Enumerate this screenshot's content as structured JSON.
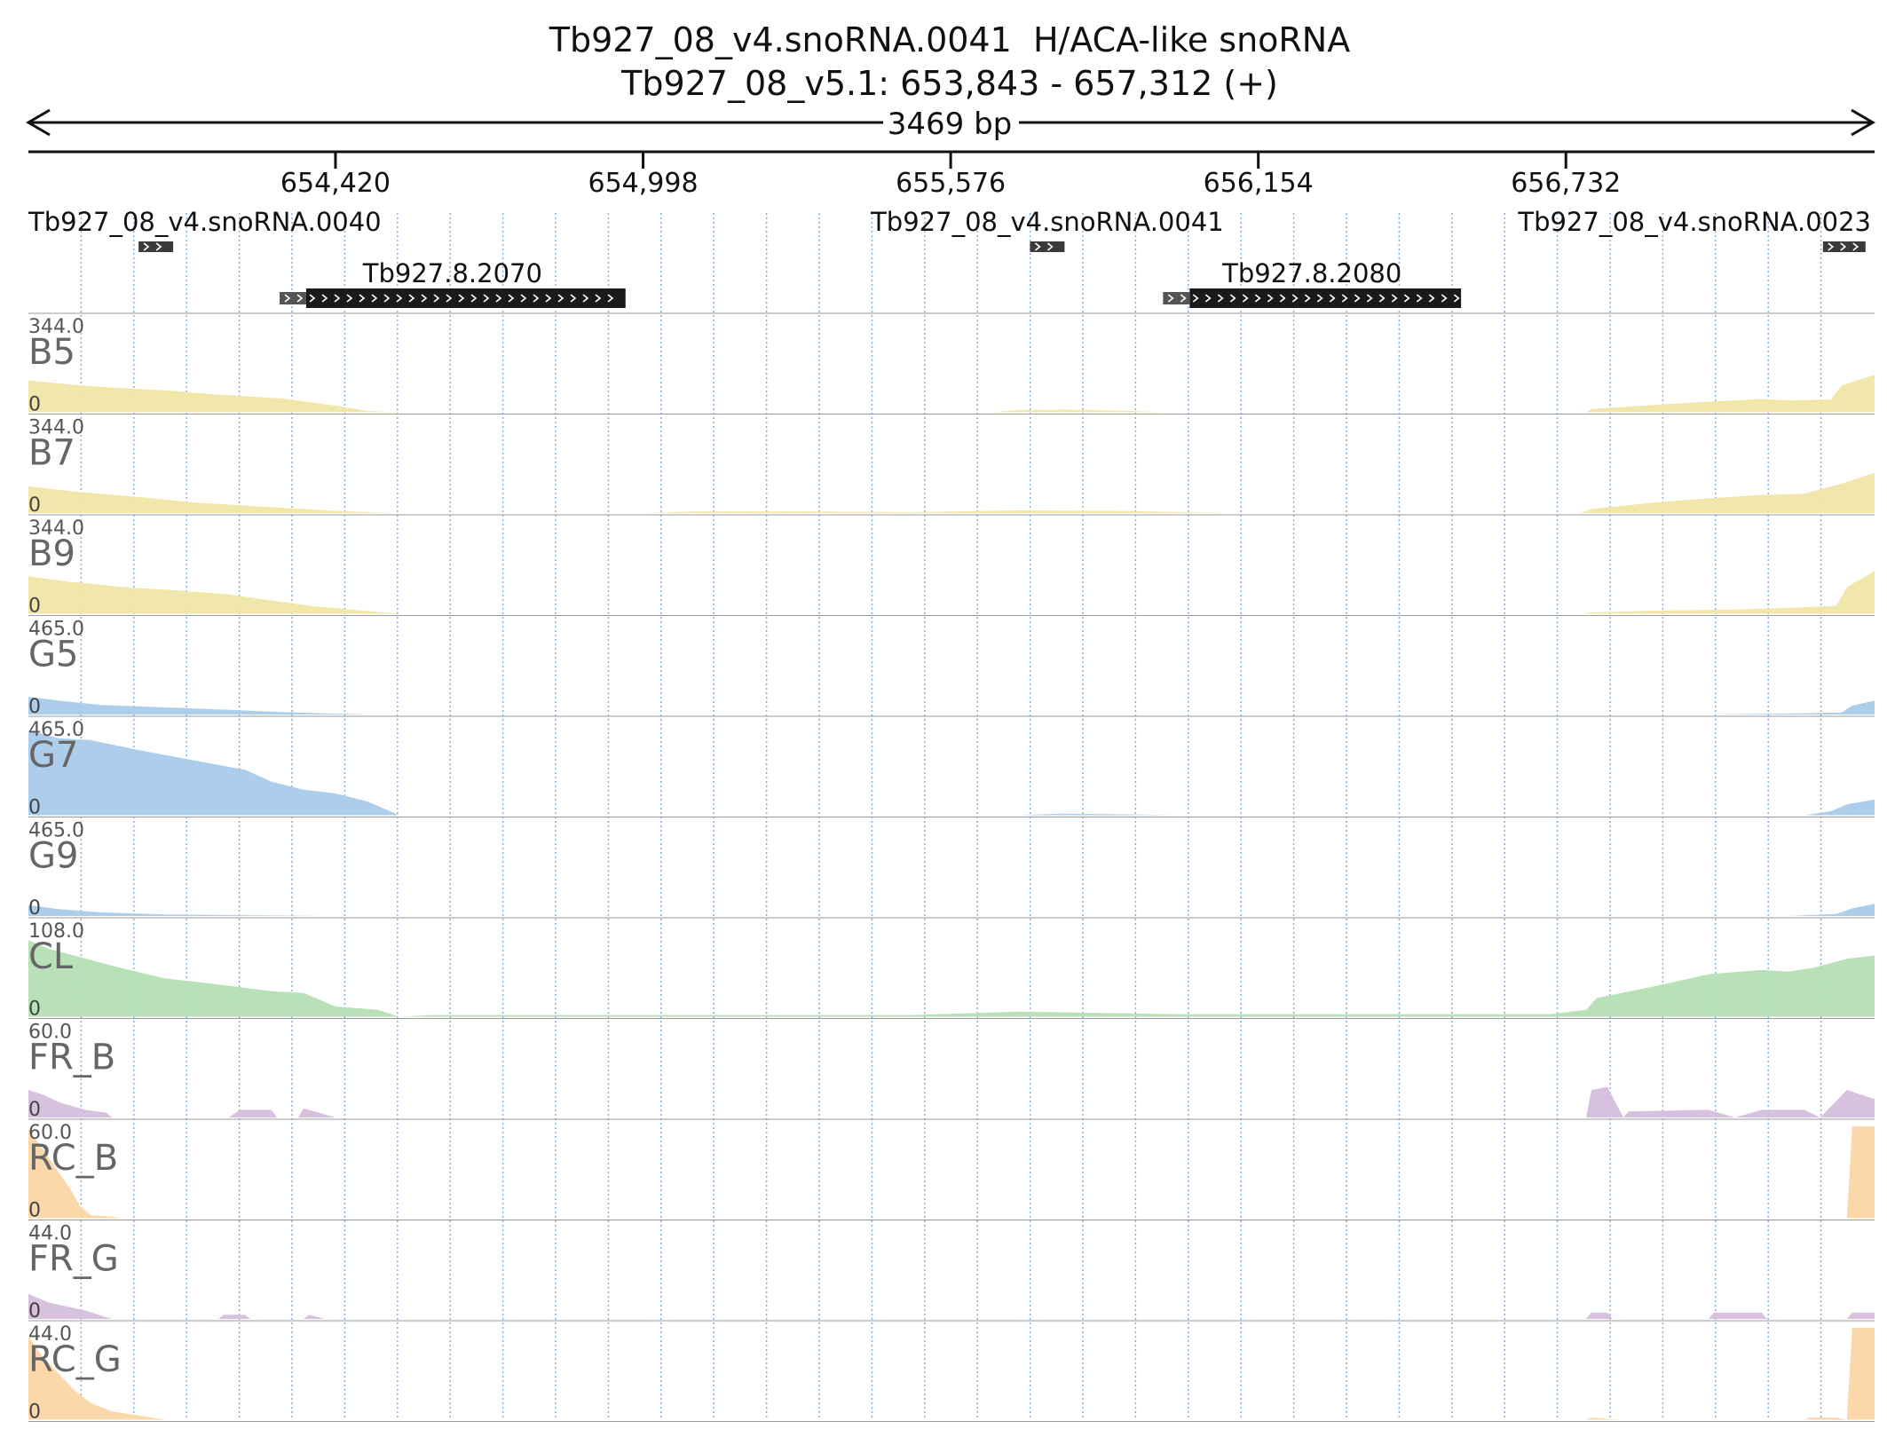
{
  "header": {
    "title": "Tb927_08_v4.snoRNA.0041  H/ACA-like snoRNA",
    "locus": "Tb927_08_v5.1: 653,843 - 657,312 (+)",
    "span_label": "3469 bp"
  },
  "region": {
    "start": 653843,
    "end": 657312,
    "strand": "+"
  },
  "ruler": {
    "ticks": [
      {
        "pos": 654420,
        "label": "654,420"
      },
      {
        "pos": 654998,
        "label": "654,998"
      },
      {
        "pos": 655576,
        "label": "655,576"
      },
      {
        "pos": 656154,
        "label": "656,154"
      },
      {
        "pos": 656732,
        "label": "656,732"
      }
    ]
  },
  "features": [
    {
      "name": "Tb927_08_v4.snoRNA.0040",
      "type": "snoRNA",
      "start": 654050,
      "end": 654115,
      "label_anchor": "start",
      "row": 0
    },
    {
      "name": "Tb927_08_v4.snoRNA.0041",
      "type": "snoRNA",
      "start": 655725,
      "end": 655790,
      "label_anchor": "middle",
      "row": 0
    },
    {
      "name": "Tb927_08_v4.snoRNA.0023",
      "type": "snoRNA",
      "start": 657215,
      "end": 657295,
      "label_anchor": "end",
      "row": 0
    },
    {
      "name": "Tb927.8.2070",
      "type": "gene",
      "start": 654315,
      "end": 654965,
      "utr_end": 654365,
      "label_anchor": "middle",
      "row": 1
    },
    {
      "name": "Tb927.8.2080",
      "type": "gene",
      "start": 655975,
      "end": 656535,
      "utr_end": 656025,
      "label_anchor": "middle",
      "row": 1
    }
  ],
  "tracks": [
    {
      "name": "B5",
      "max_label": "344.0",
      "min_label": "0",
      "max": 344,
      "color": "#f0e6a6",
      "profile": [
        [
          653843,
          120
        ],
        [
          653930,
          102
        ],
        [
          654020,
          90
        ],
        [
          654100,
          82
        ],
        [
          654200,
          66
        ],
        [
          654320,
          52
        ],
        [
          654420,
          25
        ],
        [
          654480,
          5
        ],
        [
          654540,
          0
        ],
        [
          655650,
          0
        ],
        [
          655700,
          8
        ],
        [
          655790,
          10
        ],
        [
          655900,
          6
        ],
        [
          655980,
          0
        ],
        [
          656770,
          0
        ],
        [
          656780,
          12
        ],
        [
          656900,
          28
        ],
        [
          657000,
          40
        ],
        [
          657100,
          50
        ],
        [
          657150,
          45
        ],
        [
          657230,
          48
        ],
        [
          657250,
          100
        ],
        [
          657312,
          140
        ]
      ]
    },
    {
      "name": "B7",
      "max_label": "344.0",
      "min_label": "0",
      "max": 344,
      "color": "#f0e6a6",
      "profile": [
        [
          653843,
          100
        ],
        [
          653930,
          80
        ],
        [
          654050,
          60
        ],
        [
          654150,
          40
        ],
        [
          654300,
          22
        ],
        [
          654420,
          8
        ],
        [
          654530,
          0
        ],
        [
          655000,
          0
        ],
        [
          655100,
          6
        ],
        [
          655300,
          6
        ],
        [
          655500,
          3
        ],
        [
          655700,
          10
        ],
        [
          655900,
          8
        ],
        [
          656100,
          0
        ],
        [
          656760,
          0
        ],
        [
          656780,
          15
        ],
        [
          656900,
          40
        ],
        [
          657000,
          55
        ],
        [
          657100,
          68
        ],
        [
          657180,
          72
        ],
        [
          657250,
          110
        ],
        [
          657312,
          150
        ]
      ]
    },
    {
      "name": "B9",
      "max_label": "344.0",
      "min_label": "0",
      "max": 344,
      "color": "#f0e6a6",
      "profile": [
        [
          653843,
          140
        ],
        [
          653920,
          120
        ],
        [
          654020,
          100
        ],
        [
          654120,
          88
        ],
        [
          654220,
          72
        ],
        [
          654300,
          50
        ],
        [
          654380,
          28
        ],
        [
          654470,
          12
        ],
        [
          654540,
          0
        ],
        [
          656760,
          0
        ],
        [
          656780,
          5
        ],
        [
          656900,
          12
        ],
        [
          657050,
          16
        ],
        [
          657150,
          22
        ],
        [
          657240,
          30
        ],
        [
          657260,
          100
        ],
        [
          657312,
          160
        ]
      ]
    },
    {
      "name": "G5",
      "max_label": "465.0",
      "min_label": "0",
      "max": 465,
      "color": "#a9cbea",
      "profile": [
        [
          653843,
          90
        ],
        [
          653900,
          70
        ],
        [
          653980,
          48
        ],
        [
          654100,
          36
        ],
        [
          654200,
          26
        ],
        [
          654300,
          14
        ],
        [
          654400,
          6
        ],
        [
          654480,
          0
        ],
        [
          657000,
          0
        ],
        [
          657150,
          5
        ],
        [
          657250,
          10
        ],
        [
          657270,
          45
        ],
        [
          657312,
          70
        ]
      ]
    },
    {
      "name": "G7",
      "max_label": "465.0",
      "min_label": "0",
      "max": 465,
      "color": "#a9cbea",
      "profile": [
        [
          653843,
          430
        ],
        [
          653900,
          390
        ],
        [
          653960,
          380
        ],
        [
          654050,
          330
        ],
        [
          654150,
          280
        ],
        [
          654250,
          230
        ],
        [
          654300,
          170
        ],
        [
          654360,
          130
        ],
        [
          654420,
          110
        ],
        [
          654480,
          70
        ],
        [
          654540,
          0
        ],
        [
          655700,
          0
        ],
        [
          655780,
          8
        ],
        [
          655900,
          5
        ],
        [
          656000,
          0
        ],
        [
          657180,
          0
        ],
        [
          657230,
          20
        ],
        [
          657260,
          55
        ],
        [
          657312,
          80
        ]
      ]
    },
    {
      "name": "G9",
      "max_label": "465.0",
      "min_label": "0",
      "max": 465,
      "color": "#a9cbea",
      "profile": [
        [
          653843,
          55
        ],
        [
          653900,
          35
        ],
        [
          653980,
          18
        ],
        [
          654100,
          8
        ],
        [
          654250,
          4
        ],
        [
          654400,
          0
        ],
        [
          657150,
          0
        ],
        [
          657240,
          10
        ],
        [
          657270,
          38
        ],
        [
          657312,
          62
        ]
      ]
    },
    {
      "name": "CL",
      "max_label": "108.0",
      "min_label": "0",
      "max": 108,
      "color": "#b4dfb4",
      "profile": [
        [
          653843,
          90
        ],
        [
          653880,
          80
        ],
        [
          653940,
          70
        ],
        [
          654000,
          60
        ],
        [
          654100,
          45
        ],
        [
          654200,
          38
        ],
        [
          654300,
          30
        ],
        [
          654360,
          28
        ],
        [
          654420,
          12
        ],
        [
          654500,
          8
        ],
        [
          654540,
          0
        ],
        [
          654600,
          2
        ],
        [
          655500,
          2
        ],
        [
          655700,
          6
        ],
        [
          656000,
          3
        ],
        [
          656700,
          3
        ],
        [
          656770,
          8
        ],
        [
          656790,
          22
        ],
        [
          656900,
          36
        ],
        [
          657000,
          50
        ],
        [
          657100,
          55
        ],
        [
          657150,
          53
        ],
        [
          657200,
          58
        ],
        [
          657260,
          68
        ],
        [
          657312,
          72
        ]
      ]
    },
    {
      "name": "FR_B",
      "max_label": "60.0",
      "min_label": "0",
      "max": 60,
      "color": "#d6bedc",
      "profile": [
        [
          653843,
          18
        ],
        [
          653870,
          15
        ],
        [
          653900,
          10
        ],
        [
          653950,
          5
        ],
        [
          653990,
          3
        ],
        [
          654000,
          0
        ],
        [
          654220,
          0
        ],
        [
          654240,
          5
        ],
        [
          654300,
          5
        ],
        [
          654310,
          0
        ],
        [
          654350,
          0
        ],
        [
          654360,
          6
        ],
        [
          654420,
          0
        ],
        [
          656770,
          0
        ],
        [
          656780,
          18
        ],
        [
          656810,
          20
        ],
        [
          656840,
          0
        ],
        [
          656850,
          4
        ],
        [
          657000,
          5
        ],
        [
          657050,
          0
        ],
        [
          657100,
          5
        ],
        [
          657180,
          5
        ],
        [
          657210,
          0
        ],
        [
          657260,
          18
        ],
        [
          657312,
          12
        ]
      ]
    },
    {
      "name": "RC_B",
      "max_label": "60.0",
      "min_label": "0",
      "max": 60,
      "color": "#fbd6a4",
      "profile": [
        [
          653843,
          58
        ],
        [
          653860,
          50
        ],
        [
          653880,
          40
        ],
        [
          653900,
          30
        ],
        [
          653920,
          20
        ],
        [
          653940,
          8
        ],
        [
          653960,
          2
        ],
        [
          654000,
          1
        ],
        [
          654020,
          0
        ],
        [
          657260,
          0
        ],
        [
          657270,
          60
        ],
        [
          657312,
          60
        ]
      ]
    },
    {
      "name": "FR_G",
      "max_label": "44.0",
      "min_label": "0",
      "max": 44,
      "color": "#d6bedc",
      "profile": [
        [
          653843,
          12
        ],
        [
          653880,
          8
        ],
        [
          653950,
          4
        ],
        [
          654000,
          0
        ],
        [
          654200,
          0
        ],
        [
          654210,
          2
        ],
        [
          654250,
          2
        ],
        [
          654260,
          0
        ],
        [
          654360,
          0
        ],
        [
          654370,
          2
        ],
        [
          654400,
          0
        ],
        [
          656770,
          0
        ],
        [
          656780,
          3
        ],
        [
          656810,
          3
        ],
        [
          656820,
          0
        ],
        [
          657000,
          0
        ],
        [
          657010,
          3
        ],
        [
          657100,
          3
        ],
        [
          657110,
          0
        ],
        [
          657260,
          0
        ],
        [
          657270,
          3
        ],
        [
          657312,
          3
        ]
      ]
    },
    {
      "name": "RC_G",
      "max_label": "44.0",
      "min_label": "0",
      "max": 44,
      "color": "#fbd6a4",
      "profile": [
        [
          653843,
          40
        ],
        [
          653870,
          30
        ],
        [
          653900,
          22
        ],
        [
          653930,
          14
        ],
        [
          653960,
          8
        ],
        [
          654000,
          4
        ],
        [
          654050,
          2
        ],
        [
          654100,
          0
        ],
        [
          656770,
          0
        ],
        [
          656780,
          1
        ],
        [
          656830,
          0
        ],
        [
          657180,
          0
        ],
        [
          657190,
          1
        ],
        [
          657240,
          1
        ],
        [
          657260,
          0
        ],
        [
          657270,
          44
        ],
        [
          657312,
          44
        ]
      ]
    }
  ]
}
